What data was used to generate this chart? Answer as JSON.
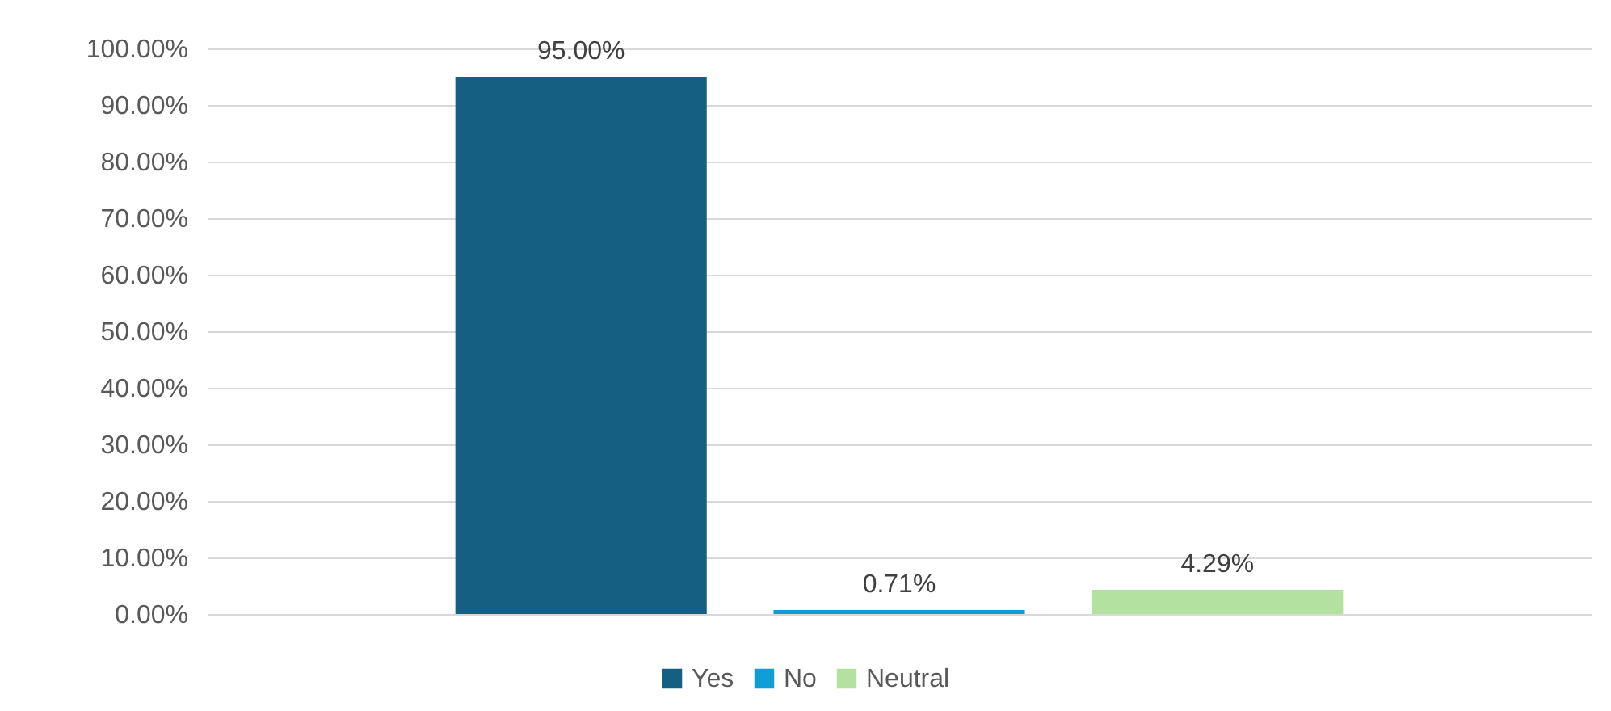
{
  "chart_data": {
    "type": "bar",
    "categories": [
      null
    ],
    "series": [
      {
        "name": "Yes",
        "color": "#156082",
        "values": [
          95
        ],
        "value_labels": [
          "95.00%"
        ]
      },
      {
        "name": "No",
        "color": "#0f9ed5",
        "values": [
          0.71
        ],
        "value_labels": [
          "0.71%"
        ]
      },
      {
        "name": "Neutral",
        "color": "#b3e2a0",
        "values": [
          4.29
        ],
        "value_labels": [
          "4.29%"
        ]
      }
    ],
    "ylim": [
      0,
      100
    ],
    "yticks": [
      {
        "value": 0,
        "label": "0.00%"
      },
      {
        "value": 10,
        "label": "10.00%"
      },
      {
        "value": 20,
        "label": "20.00%"
      },
      {
        "value": 30,
        "label": "30.00%"
      },
      {
        "value": 40,
        "label": "40.00%"
      },
      {
        "value": 50,
        "label": "50.00%"
      },
      {
        "value": 60,
        "label": "60.00%"
      },
      {
        "value": 70,
        "label": "70.00%"
      },
      {
        "value": 80,
        "label": "80.00%"
      },
      {
        "value": 90,
        "label": "90.00%"
      },
      {
        "value": 100,
        "label": "100.00%"
      }
    ],
    "grid": "y",
    "legend": "bottom"
  }
}
